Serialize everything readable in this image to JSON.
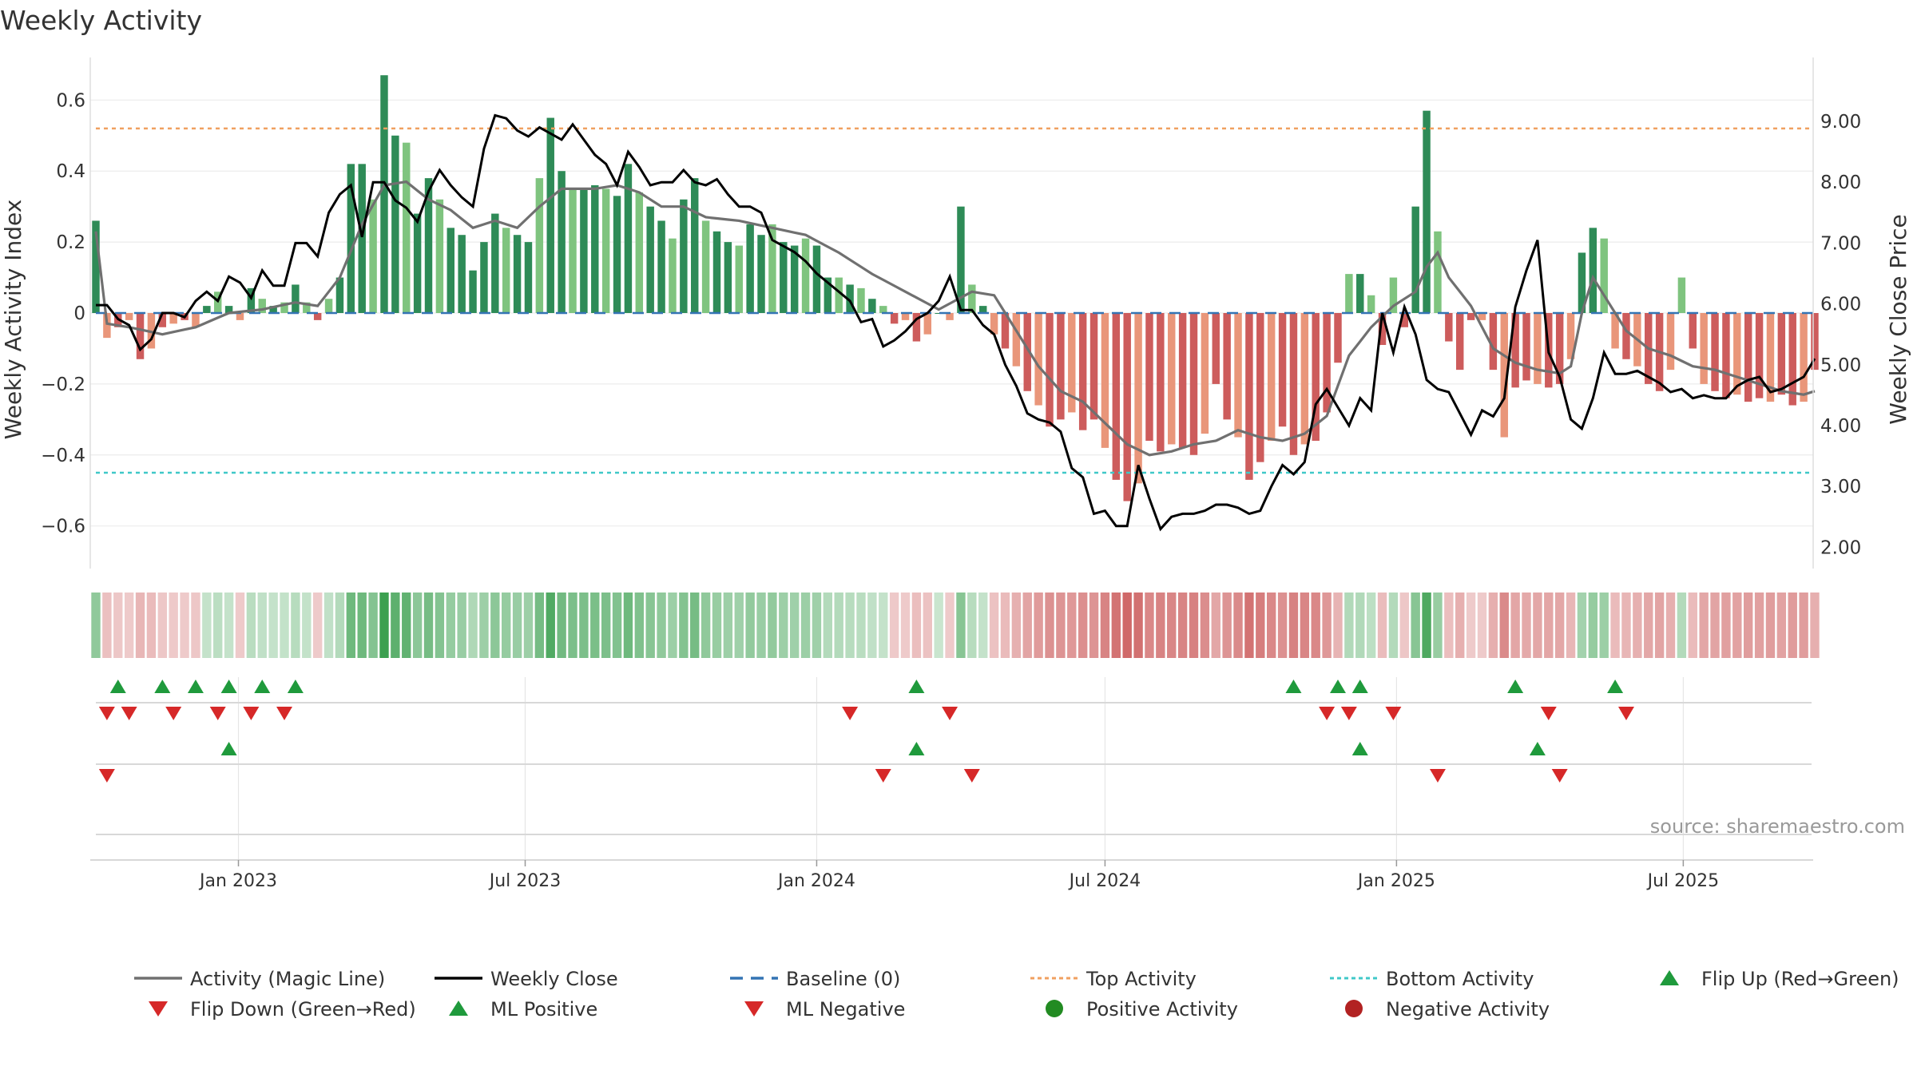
{
  "chart_data": {
    "type": "bar",
    "title": "Weekly Activity",
    "ylabel_left": "Weekly Activity Index",
    "ylabel_right": "Weekly Close Price",
    "source": "source: sharemaestro.com",
    "x_start": "2022-10-03",
    "week_count": 156,
    "x_ticks": [
      {
        "date": "2023-01-01",
        "label": "Jan 2023"
      },
      {
        "date": "2023-07-01",
        "label": "Jul 2023"
      },
      {
        "date": "2024-01-01",
        "label": "Jan 2024"
      },
      {
        "date": "2024-07-01",
        "label": "Jul 2024"
      },
      {
        "date": "2025-01-01",
        "label": "Jan 2025"
      },
      {
        "date": "2025-07-01",
        "label": "Jul 2025"
      }
    ],
    "left_axis": {
      "ylim": [
        -0.72,
        0.72
      ],
      "ticks": [
        0.6,
        0.4,
        0.2,
        0,
        -0.2,
        -0.4,
        -0.6
      ],
      "tick_labels": [
        "0.6",
        "0.4",
        "0.2",
        "0",
        "−0.2",
        "−0.4",
        "−0.6"
      ]
    },
    "right_axis": {
      "ylim": [
        1.65,
        10.05
      ],
      "ticks": [
        9,
        8,
        7,
        6,
        5,
        4,
        3,
        2
      ],
      "tick_labels": [
        "9.00",
        "8.00",
        "7.00",
        "6.00",
        "5.00",
        "4.00",
        "3.00",
        "2.00"
      ]
    },
    "top_activity": 0.52,
    "bottom_activity": -0.45,
    "activity_anchors": [
      [
        0,
        0.26
      ],
      [
        1,
        -0.07
      ],
      [
        2,
        -0.04
      ],
      [
        3,
        -0.02
      ],
      [
        4,
        -0.13
      ],
      [
        5,
        -0.1
      ],
      [
        6,
        -0.04
      ],
      [
        7,
        -0.03
      ],
      [
        8,
        -0.02
      ],
      [
        9,
        -0.04
      ],
      [
        10,
        0.02
      ],
      [
        11,
        0.06
      ],
      [
        12,
        0.02
      ],
      [
        13,
        -0.02
      ],
      [
        14,
        0.07
      ],
      [
        15,
        0.04
      ],
      [
        16,
        0.02
      ],
      [
        17,
        0.03
      ],
      [
        18,
        0.08
      ],
      [
        19,
        0.03
      ],
      [
        20,
        -0.02
      ],
      [
        21,
        0.04
      ],
      [
        22,
        0.1
      ],
      [
        23,
        0.42
      ],
      [
        24,
        0.42
      ],
      [
        25,
        0.32
      ],
      [
        26,
        0.67
      ],
      [
        27,
        0.5
      ],
      [
        28,
        0.48
      ],
      [
        29,
        0.28
      ],
      [
        30,
        0.38
      ],
      [
        31,
        0.32
      ],
      [
        32,
        0.24
      ],
      [
        33,
        0.22
      ],
      [
        34,
        0.12
      ],
      [
        35,
        0.2
      ],
      [
        36,
        0.28
      ],
      [
        37,
        0.24
      ],
      [
        38,
        0.22
      ],
      [
        39,
        0.2
      ],
      [
        40,
        0.38
      ],
      [
        41,
        0.55
      ],
      [
        42,
        0.4
      ],
      [
        43,
        0.35
      ],
      [
        44,
        0.35
      ],
      [
        45,
        0.36
      ],
      [
        46,
        0.35
      ],
      [
        47,
        0.33
      ],
      [
        48,
        0.42
      ],
      [
        49,
        0.34
      ],
      [
        50,
        0.3
      ],
      [
        51,
        0.26
      ],
      [
        52,
        0.21
      ],
      [
        53,
        0.32
      ],
      [
        54,
        0.38
      ],
      [
        55,
        0.26
      ],
      [
        56,
        0.23
      ],
      [
        57,
        0.2
      ],
      [
        58,
        0.19
      ],
      [
        59,
        0.25
      ],
      [
        60,
        0.22
      ],
      [
        61,
        0.25
      ],
      [
        62,
        0.2
      ],
      [
        63,
        0.19
      ],
      [
        64,
        0.21
      ],
      [
        65,
        0.19
      ],
      [
        66,
        0.1
      ],
      [
        67,
        0.1
      ],
      [
        68,
        0.08
      ],
      [
        69,
        0.07
      ],
      [
        70,
        0.04
      ],
      [
        71,
        0.02
      ],
      [
        72,
        -0.03
      ],
      [
        73,
        -0.02
      ],
      [
        74,
        -0.08
      ],
      [
        75,
        -0.06
      ],
      [
        76,
        0
      ],
      [
        77,
        -0.02
      ],
      [
        78,
        0.3
      ],
      [
        79,
        0.08
      ],
      [
        80,
        0.02
      ],
      [
        81,
        -0.06
      ],
      [
        82,
        -0.1
      ],
      [
        83,
        -0.15
      ],
      [
        84,
        -0.22
      ],
      [
        85,
        -0.26
      ],
      [
        86,
        -0.32
      ],
      [
        87,
        -0.3
      ],
      [
        88,
        -0.28
      ],
      [
        89,
        -0.33
      ],
      [
        90,
        -0.3
      ],
      [
        91,
        -0.38
      ],
      [
        92,
        -0.47
      ],
      [
        93,
        -0.53
      ],
      [
        94,
        -0.48
      ],
      [
        95,
        -0.36
      ],
      [
        96,
        -0.39
      ],
      [
        97,
        -0.37
      ],
      [
        98,
        -0.38
      ],
      [
        99,
        -0.4
      ],
      [
        100,
        -0.34
      ],
      [
        101,
        -0.2
      ],
      [
        102,
        -0.3
      ],
      [
        103,
        -0.35
      ],
      [
        104,
        -0.47
      ],
      [
        105,
        -0.42
      ],
      [
        106,
        -0.36
      ],
      [
        107,
        -0.32
      ],
      [
        108,
        -0.4
      ],
      [
        109,
        -0.37
      ],
      [
        110,
        -0.36
      ],
      [
        111,
        -0.28
      ],
      [
        112,
        -0.14
      ],
      [
        113,
        0.11
      ],
      [
        114,
        0.11
      ],
      [
        115,
        0.05
      ],
      [
        116,
        -0.09
      ],
      [
        117,
        0.1
      ],
      [
        118,
        -0.04
      ],
      [
        119,
        0.3
      ],
      [
        120,
        0.57
      ],
      [
        121,
        0.23
      ],
      [
        122,
        -0.08
      ],
      [
        123,
        -0.16
      ],
      [
        124,
        -0.02
      ],
      [
        125,
        -0.02
      ],
      [
        126,
        -0.16
      ],
      [
        127,
        -0.35
      ],
      [
        128,
        -0.21
      ],
      [
        129,
        -0.19
      ],
      [
        130,
        -0.2
      ],
      [
        131,
        -0.21
      ],
      [
        132,
        -0.2
      ],
      [
        133,
        -0.13
      ],
      [
        134,
        0.17
      ],
      [
        135,
        0.24
      ],
      [
        136,
        0.21
      ],
      [
        137,
        -0.1
      ],
      [
        138,
        -0.13
      ],
      [
        139,
        -0.15
      ],
      [
        140,
        -0.2
      ],
      [
        141,
        -0.22
      ],
      [
        142,
        -0.16
      ],
      [
        143,
        0.1
      ],
      [
        144,
        -0.1
      ],
      [
        145,
        -0.2
      ],
      [
        146,
        -0.22
      ],
      [
        147,
        -0.24
      ],
      [
        148,
        -0.23
      ],
      [
        149,
        -0.25
      ],
      [
        150,
        -0.24
      ],
      [
        151,
        -0.25
      ],
      [
        152,
        -0.23
      ],
      [
        153,
        -0.26
      ],
      [
        154,
        -0.25
      ],
      [
        155,
        -0.16
      ]
    ],
    "magic_line_anchors": [
      [
        0,
        0.23
      ],
      [
        1,
        -0.03
      ],
      [
        3,
        -0.04
      ],
      [
        6,
        -0.06
      ],
      [
        9,
        -0.04
      ],
      [
        12,
        0.0
      ],
      [
        15,
        0.01
      ],
      [
        18,
        0.03
      ],
      [
        20,
        0.02
      ],
      [
        22,
        0.1
      ],
      [
        24,
        0.25
      ],
      [
        26,
        0.36
      ],
      [
        28,
        0.37
      ],
      [
        30,
        0.32
      ],
      [
        32,
        0.29
      ],
      [
        34,
        0.24
      ],
      [
        36,
        0.26
      ],
      [
        38,
        0.24
      ],
      [
        40,
        0.3
      ],
      [
        42,
        0.35
      ],
      [
        45,
        0.35
      ],
      [
        47,
        0.36
      ],
      [
        49,
        0.34
      ],
      [
        51,
        0.3
      ],
      [
        53,
        0.3
      ],
      [
        55,
        0.27
      ],
      [
        58,
        0.26
      ],
      [
        61,
        0.24
      ],
      [
        64,
        0.22
      ],
      [
        67,
        0.17
      ],
      [
        70,
        0.11
      ],
      [
        73,
        0.06
      ],
      [
        76,
        0.01
      ],
      [
        79,
        0.06
      ],
      [
        81,
        0.05
      ],
      [
        83,
        -0.05
      ],
      [
        85,
        -0.15
      ],
      [
        87,
        -0.22
      ],
      [
        89,
        -0.25
      ],
      [
        91,
        -0.31
      ],
      [
        93,
        -0.37
      ],
      [
        95,
        -0.4
      ],
      [
        97,
        -0.39
      ],
      [
        99,
        -0.37
      ],
      [
        101,
        -0.36
      ],
      [
        103,
        -0.33
      ],
      [
        105,
        -0.35
      ],
      [
        107,
        -0.36
      ],
      [
        109,
        -0.34
      ],
      [
        111,
        -0.29
      ],
      [
        113,
        -0.12
      ],
      [
        115,
        -0.04
      ],
      [
        117,
        0.02
      ],
      [
        119,
        0.06
      ],
      [
        120,
        0.13
      ],
      [
        121,
        0.17
      ],
      [
        122,
        0.1
      ],
      [
        124,
        0.02
      ],
      [
        126,
        -0.1
      ],
      [
        128,
        -0.14
      ],
      [
        130,
        -0.16
      ],
      [
        132,
        -0.17
      ],
      [
        133,
        -0.15
      ],
      [
        134,
        0.0
      ],
      [
        135,
        0.1
      ],
      [
        136,
        0.05
      ],
      [
        138,
        -0.05
      ],
      [
        140,
        -0.1
      ],
      [
        142,
        -0.12
      ],
      [
        144,
        -0.15
      ],
      [
        146,
        -0.16
      ],
      [
        148,
        -0.18
      ],
      [
        150,
        -0.2
      ],
      [
        152,
        -0.22
      ],
      [
        154,
        -0.23
      ],
      [
        155,
        -0.22
      ]
    ],
    "close_anchors": [
      [
        0,
        5.98
      ],
      [
        1,
        5.98
      ],
      [
        2,
        5.75
      ],
      [
        3,
        5.65
      ],
      [
        4,
        5.25
      ],
      [
        5,
        5.42
      ],
      [
        6,
        5.85
      ],
      [
        7,
        5.85
      ],
      [
        8,
        5.78
      ],
      [
        9,
        6.05
      ],
      [
        10,
        6.2
      ],
      [
        11,
        6.05
      ],
      [
        12,
        6.45
      ],
      [
        13,
        6.35
      ],
      [
        14,
        6.1
      ],
      [
        15,
        6.55
      ],
      [
        16,
        6.3
      ],
      [
        17,
        6.3
      ],
      [
        18,
        7.0
      ],
      [
        19,
        7.0
      ],
      [
        20,
        6.78
      ],
      [
        21,
        7.5
      ],
      [
        22,
        7.8
      ],
      [
        23,
        7.95
      ],
      [
        24,
        7.1
      ],
      [
        25,
        8.0
      ],
      [
        26,
        8.0
      ],
      [
        27,
        7.7
      ],
      [
        28,
        7.58
      ],
      [
        29,
        7.35
      ],
      [
        30,
        7.85
      ],
      [
        31,
        8.2
      ],
      [
        32,
        7.95
      ],
      [
        33,
        7.75
      ],
      [
        34,
        7.6
      ],
      [
        35,
        8.55
      ],
      [
        36,
        9.1
      ],
      [
        37,
        9.05
      ],
      [
        38,
        8.85
      ],
      [
        39,
        8.75
      ],
      [
        40,
        8.9
      ],
      [
        41,
        8.8
      ],
      [
        42,
        8.7
      ],
      [
        43,
        8.95
      ],
      [
        44,
        8.7
      ],
      [
        45,
        8.45
      ],
      [
        46,
        8.3
      ],
      [
        47,
        7.95
      ],
      [
        48,
        8.5
      ],
      [
        49,
        8.25
      ],
      [
        50,
        7.95
      ],
      [
        51,
        8.0
      ],
      [
        52,
        8.0
      ],
      [
        53,
        8.2
      ],
      [
        54,
        8.0
      ],
      [
        55,
        7.95
      ],
      [
        56,
        8.05
      ],
      [
        57,
        7.8
      ],
      [
        58,
        7.6
      ],
      [
        59,
        7.6
      ],
      [
        60,
        7.5
      ],
      [
        61,
        7.05
      ],
      [
        62,
        6.95
      ],
      [
        63,
        6.85
      ],
      [
        64,
        6.7
      ],
      [
        65,
        6.5
      ],
      [
        66,
        6.35
      ],
      [
        67,
        6.2
      ],
      [
        68,
        6.05
      ],
      [
        69,
        5.7
      ],
      [
        70,
        5.75
      ],
      [
        71,
        5.3
      ],
      [
        72,
        5.4
      ],
      [
        73,
        5.55
      ],
      [
        74,
        5.75
      ],
      [
        75,
        5.85
      ],
      [
        76,
        6.05
      ],
      [
        77,
        6.45
      ],
      [
        78,
        5.9
      ],
      [
        79,
        5.9
      ],
      [
        80,
        5.65
      ],
      [
        81,
        5.5
      ],
      [
        82,
        5.0
      ],
      [
        83,
        4.65
      ],
      [
        84,
        4.2
      ],
      [
        85,
        4.1
      ],
      [
        86,
        4.05
      ],
      [
        87,
        3.9
      ],
      [
        88,
        3.3
      ],
      [
        89,
        3.15
      ],
      [
        90,
        2.55
      ],
      [
        91,
        2.6
      ],
      [
        92,
        2.35
      ],
      [
        93,
        2.35
      ],
      [
        94,
        3.35
      ],
      [
        95,
        2.8
      ],
      [
        96,
        2.3
      ],
      [
        97,
        2.5
      ],
      [
        98,
        2.55
      ],
      [
        99,
        2.55
      ],
      [
        100,
        2.6
      ],
      [
        101,
        2.7
      ],
      [
        102,
        2.7
      ],
      [
        103,
        2.65
      ],
      [
        104,
        2.55
      ],
      [
        105,
        2.6
      ],
      [
        106,
        3.0
      ],
      [
        107,
        3.35
      ],
      [
        108,
        3.2
      ],
      [
        109,
        3.4
      ],
      [
        110,
        4.35
      ],
      [
        111,
        4.6
      ],
      [
        112,
        4.3
      ],
      [
        113,
        4.0
      ],
      [
        114,
        4.45
      ],
      [
        115,
        4.25
      ],
      [
        116,
        5.85
      ],
      [
        117,
        5.2
      ],
      [
        118,
        5.95
      ],
      [
        119,
        5.5
      ],
      [
        120,
        4.75
      ],
      [
        121,
        4.6
      ],
      [
        122,
        4.55
      ],
      [
        123,
        4.2
      ],
      [
        124,
        3.85
      ],
      [
        125,
        4.25
      ],
      [
        126,
        4.15
      ],
      [
        127,
        4.45
      ],
      [
        128,
        5.95
      ],
      [
        129,
        6.55
      ],
      [
        130,
        7.05
      ],
      [
        131,
        5.2
      ],
      [
        132,
        4.8
      ],
      [
        133,
        4.1
      ],
      [
        134,
        3.95
      ],
      [
        135,
        4.45
      ],
      [
        136,
        5.2
      ],
      [
        137,
        4.85
      ],
      [
        138,
        4.85
      ],
      [
        139,
        4.9
      ],
      [
        140,
        4.8
      ],
      [
        141,
        4.7
      ],
      [
        142,
        4.55
      ],
      [
        143,
        4.6
      ],
      [
        144,
        4.45
      ],
      [
        145,
        4.5
      ],
      [
        146,
        4.45
      ],
      [
        147,
        4.45
      ],
      [
        148,
        4.65
      ],
      [
        149,
        4.75
      ],
      [
        150,
        4.8
      ],
      [
        151,
        4.55
      ],
      [
        152,
        4.6
      ],
      [
        153,
        4.7
      ],
      [
        154,
        4.8
      ],
      [
        155,
        5.1
      ]
    ],
    "flip_up_weeks": [
      2,
      6,
      9,
      12,
      15,
      18,
      74,
      108,
      112,
      114,
      128,
      137
    ],
    "flip_down_weeks": [
      1,
      3,
      7,
      11,
      14,
      17,
      68,
      77,
      111,
      113,
      117,
      131,
      138
    ],
    "ml_positive_weeks": [
      12,
      74,
      114,
      130
    ],
    "ml_negative_weeks": [
      1,
      71,
      79,
      121,
      132
    ],
    "legend": [
      {
        "label": "Activity (Magic Line)",
        "kind": "line",
        "color": "#707070"
      },
      {
        "label": "Weekly Close",
        "kind": "line",
        "color": "#000000"
      },
      {
        "label": "Baseline (0)",
        "kind": "dash",
        "color": "#3474b4"
      },
      {
        "label": "Top Activity",
        "kind": "dot",
        "color": "#f0a060"
      },
      {
        "label": "Bottom Activity",
        "kind": "dot",
        "color": "#40c8c8"
      },
      {
        "label": "Flip Up (Red→Green)",
        "kind": "tri-up",
        "color": "#1f9a3c"
      },
      {
        "label": "Flip Down (Green→Red)",
        "kind": "tri-down",
        "color": "#d62828"
      },
      {
        "label": "ML Positive",
        "kind": "tri-up",
        "color": "#1f9a3c"
      },
      {
        "label": "ML Negative",
        "kind": "tri-down",
        "color": "#d62828"
      },
      {
        "label": "Positive Activity",
        "kind": "circle",
        "color": "#228b22"
      },
      {
        "label": "Negative Activity",
        "kind": "circle",
        "color": "#b22222"
      }
    ],
    "colors": {
      "pos_dark": "#2e8b57",
      "pos_light": "#7fc47f",
      "neg_dark": "#cd5c5c",
      "neg_light": "#e9967a",
      "top_line": "#f0a060",
      "bottom_line": "#40c8c8",
      "baseline": "#3474b4"
    }
  }
}
